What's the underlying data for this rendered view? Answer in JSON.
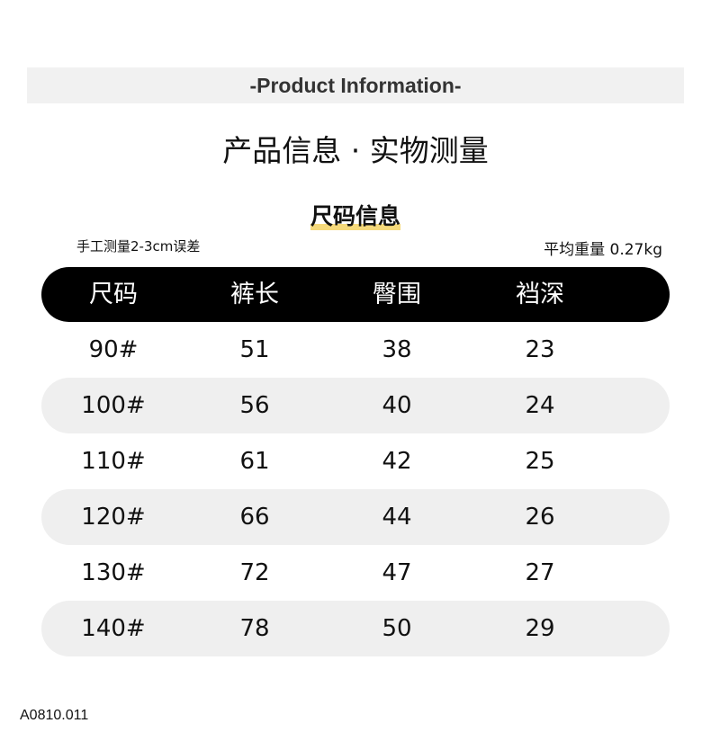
{
  "banner": "-Product  Information-",
  "title": "产品信息 · 实物测量",
  "subtitle": "尺码信息",
  "note_left": "手工测量2-3cm误差",
  "note_right": "平均重量 0.27kg",
  "table": {
    "headers": [
      "尺码",
      "裤长",
      "臀围",
      "裆深"
    ],
    "rows": [
      [
        "90#",
        "51",
        "38",
        "23"
      ],
      [
        "100#",
        "56",
        "40",
        "24"
      ],
      [
        "110#",
        "61",
        "42",
        "25"
      ],
      [
        "120#",
        "66",
        "44",
        "26"
      ],
      [
        "130#",
        "72",
        "47",
        "27"
      ],
      [
        "140#",
        "78",
        "50",
        "29"
      ]
    ]
  },
  "code": "A0810.011",
  "colors": {
    "header_bg": "#000000",
    "stripe": "#efefef",
    "highlight": "#f2cf5a",
    "banner_bg": "#f1f1f1"
  }
}
